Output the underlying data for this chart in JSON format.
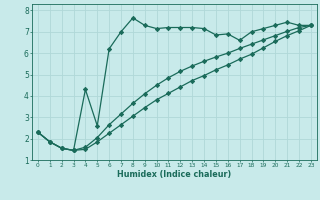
{
  "title": "",
  "xlabel": "Humidex (Indice chaleur)",
  "bg_color": "#c8eaea",
  "line_color": "#1a6b5a",
  "grid_color": "#b0d8d8",
  "xlim": [
    -0.5,
    23.5
  ],
  "ylim": [
    1,
    8.3
  ],
  "xticks": [
    0,
    1,
    2,
    3,
    4,
    5,
    6,
    7,
    8,
    9,
    10,
    11,
    12,
    13,
    14,
    15,
    16,
    17,
    18,
    19,
    20,
    21,
    22,
    23
  ],
  "yticks": [
    1,
    2,
    3,
    4,
    5,
    6,
    7,
    8
  ],
  "line1_x": [
    0,
    1,
    2,
    3,
    4,
    5,
    6,
    7,
    8,
    9,
    10,
    11,
    12,
    13,
    14,
    15,
    16,
    17,
    18,
    19,
    20,
    21,
    22,
    23
  ],
  "line1_y": [
    2.3,
    1.85,
    1.55,
    1.45,
    4.3,
    2.6,
    6.2,
    7.0,
    7.65,
    7.3,
    7.15,
    7.2,
    7.2,
    7.2,
    7.15,
    6.85,
    6.9,
    6.6,
    7.0,
    7.15,
    7.3,
    7.45,
    7.3,
    7.3
  ],
  "line2_x": [
    0,
    1,
    2,
    3,
    4,
    5,
    6,
    7,
    8,
    9,
    10,
    11,
    12,
    13,
    14,
    15,
    16,
    17,
    18,
    19,
    20,
    21,
    22,
    23
  ],
  "line2_y": [
    2.3,
    1.85,
    1.55,
    1.45,
    1.6,
    2.05,
    2.65,
    3.15,
    3.65,
    4.1,
    4.5,
    4.85,
    5.15,
    5.4,
    5.62,
    5.82,
    6.0,
    6.22,
    6.42,
    6.62,
    6.82,
    7.02,
    7.2,
    7.3
  ],
  "line3_x": [
    0,
    1,
    2,
    3,
    4,
    5,
    6,
    7,
    8,
    9,
    10,
    11,
    12,
    13,
    14,
    15,
    16,
    17,
    18,
    19,
    20,
    21,
    22,
    23
  ],
  "line3_y": [
    2.3,
    1.85,
    1.55,
    1.45,
    1.5,
    1.85,
    2.25,
    2.65,
    3.05,
    3.45,
    3.82,
    4.12,
    4.42,
    4.72,
    4.95,
    5.22,
    5.45,
    5.72,
    5.95,
    6.25,
    6.55,
    6.82,
    7.05,
    7.3
  ]
}
